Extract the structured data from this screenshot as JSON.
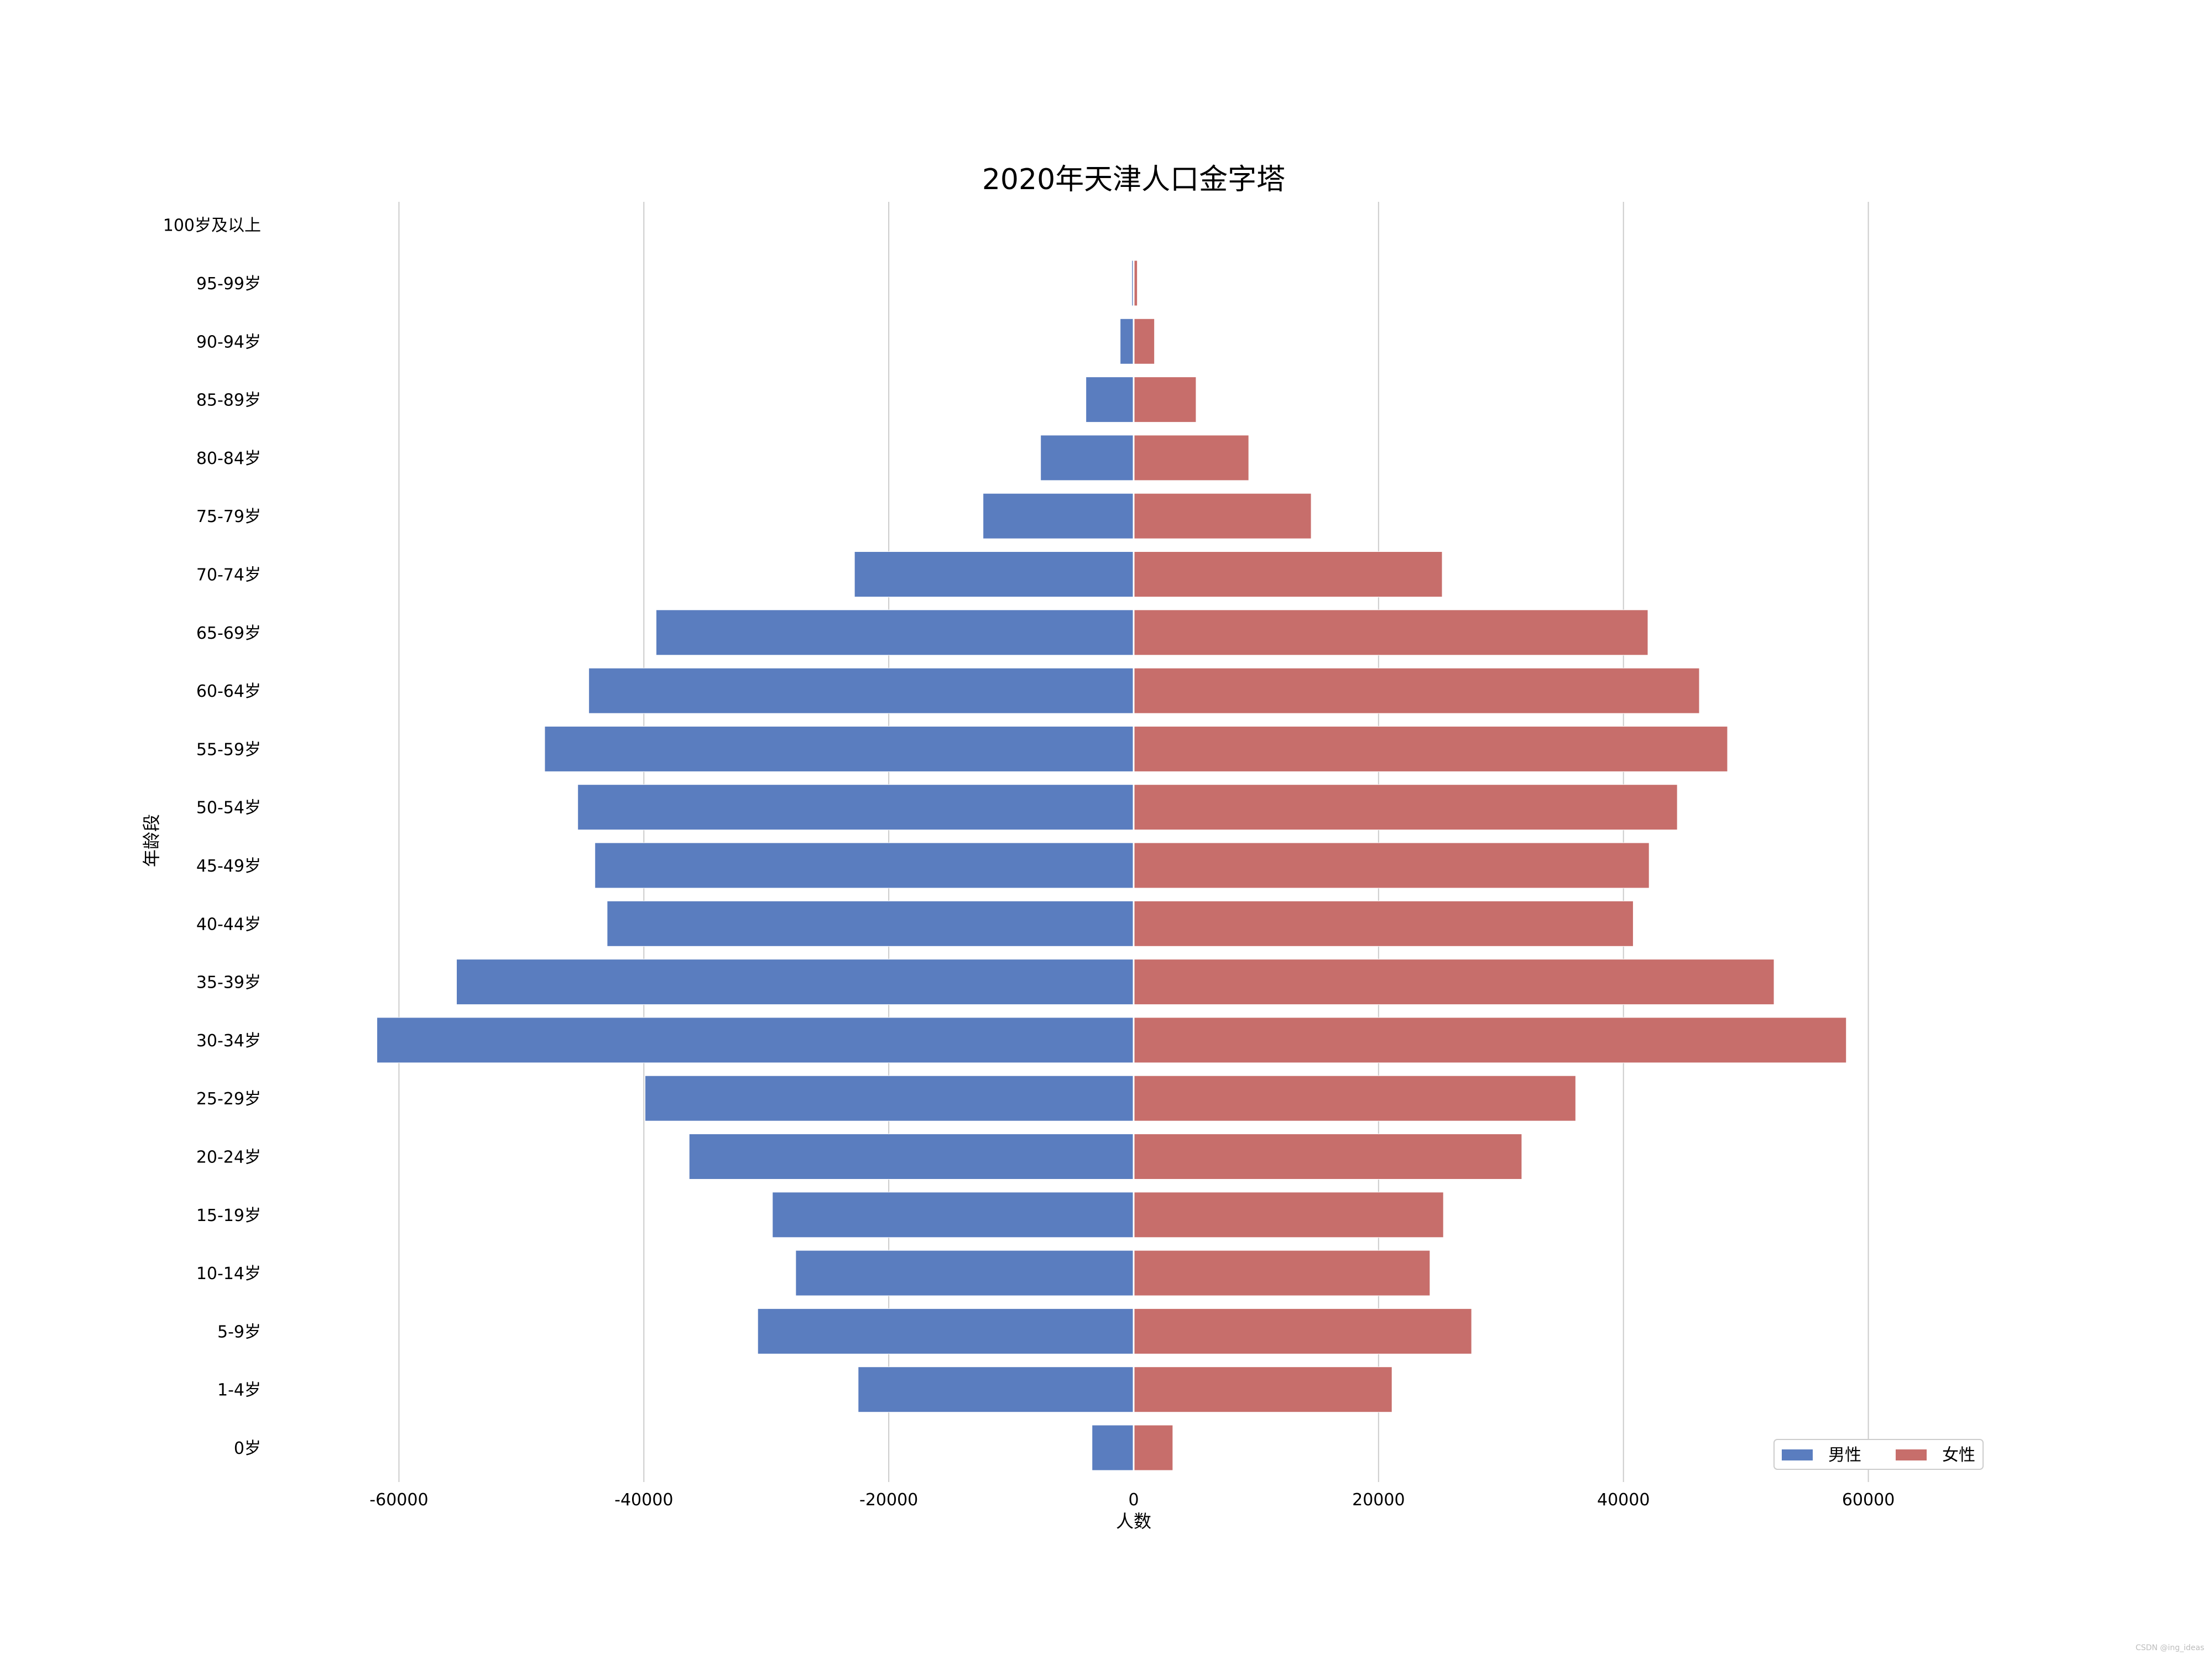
{
  "chart_data": {
    "type": "bar",
    "orientation": "horizontal",
    "title": "2020年天津人口金字塔",
    "xlabel": "人数",
    "ylabel": "年龄段",
    "xlim": [
      -70000,
      70000
    ],
    "xticks": [
      -60000,
      -40000,
      -20000,
      0,
      20000,
      40000,
      60000
    ],
    "grid": "vertical",
    "legend_position": "bottom-right",
    "categories": [
      "0岁",
      "1-4岁",
      "5-9岁",
      "10-14岁",
      "15-19岁",
      "20-24岁",
      "25-29岁",
      "30-34岁",
      "35-39岁",
      "40-44岁",
      "45-49岁",
      "50-54岁",
      "55-59岁",
      "60-64岁",
      "65-69岁",
      "70-74岁",
      "75-79岁",
      "80-84岁",
      "85-89岁",
      "90-94岁",
      "95-99岁",
      "100岁及以上"
    ],
    "series": [
      {
        "name": "男性",
        "color": "#5a7dbf",
        "values": [
          -3400,
          -22500,
          -30700,
          -27600,
          -29500,
          -36300,
          -39900,
          -61800,
          -55300,
          -43000,
          -44000,
          -45400,
          -48100,
          -44500,
          -39000,
          -22800,
          -12300,
          -7600,
          -3900,
          -1100,
          -150,
          -20
        ]
      },
      {
        "name": "女性",
        "color": "#c76e6b",
        "values": [
          3200,
          21100,
          27600,
          24200,
          25300,
          31700,
          36100,
          58200,
          52300,
          40800,
          42100,
          44400,
          48500,
          46200,
          42000,
          25200,
          14500,
          9400,
          5100,
          1700,
          300,
          30
        ]
      }
    ]
  },
  "watermark": "CSDN @ing_ideas"
}
